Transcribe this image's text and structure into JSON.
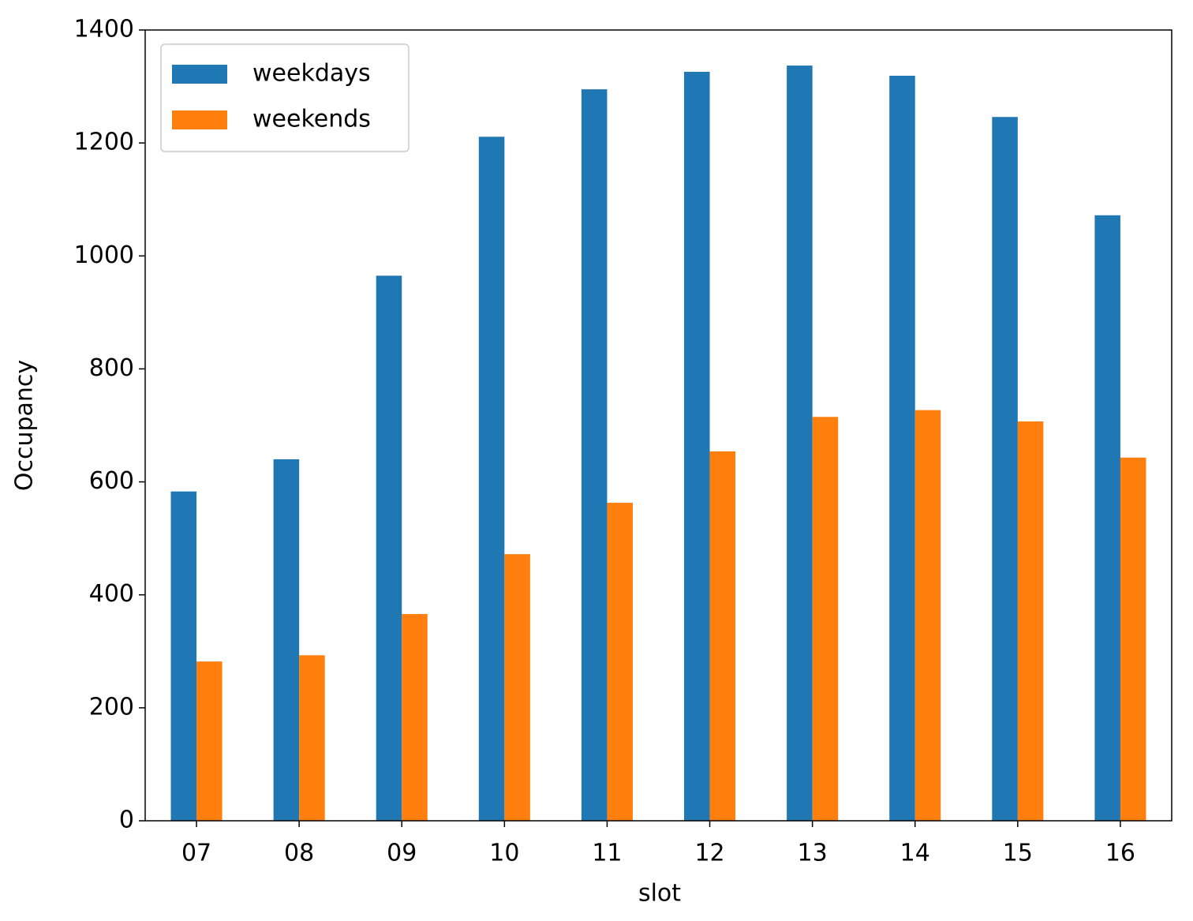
{
  "chart_data": {
    "type": "bar",
    "x_label": "slot",
    "y_label": "Occupancy",
    "categories": [
      "07",
      "08",
      "09",
      "10",
      "11",
      "12",
      "13",
      "14",
      "15",
      "16"
    ],
    "series": [
      {
        "name": "weekdays",
        "color": "#1f77b4",
        "values": [
          583,
          640,
          965,
          1211,
          1295,
          1326,
          1337,
          1319,
          1246,
          1072
        ]
      },
      {
        "name": "weekends",
        "color": "#ff7f0e",
        "values": [
          282,
          293,
          366,
          472,
          563,
          654,
          715,
          727,
          707,
          643
        ]
      }
    ],
    "ylim": [
      0,
      1400
    ],
    "yticks": [
      0,
      200,
      400,
      600,
      800,
      1000,
      1200,
      1400
    ],
    "grid": false,
    "legend": "upper-left"
  }
}
